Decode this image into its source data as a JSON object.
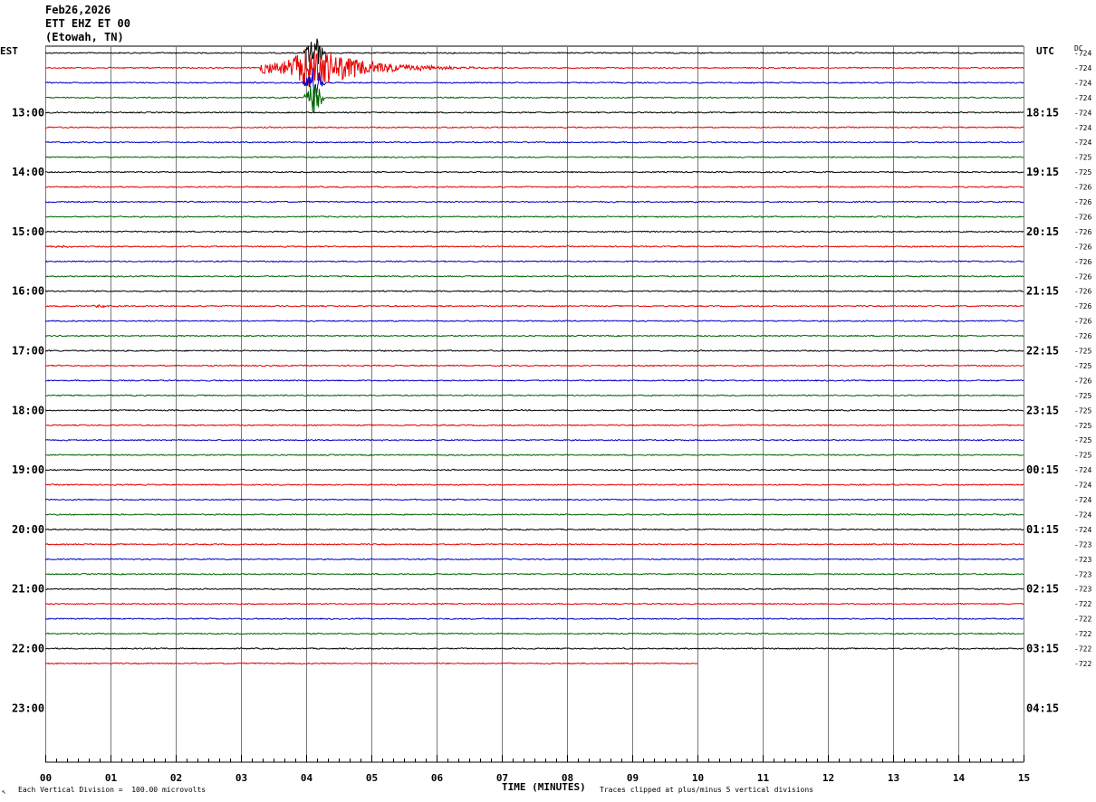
{
  "header": {
    "date": "Feb26,2026",
    "station": "ETT EHZ ET 00",
    "location": "(Etowah, TN)"
  },
  "left_timezone": "EST",
  "right_timezone": "UTC",
  "dc_label": "DC",
  "footer": {
    "scale_note": "Each Vertical Division =  100.00 microvolts",
    "clip_note": "Traces clipped at plus/minus 5 vertical divisions",
    "corner_mark": "↖"
  },
  "trace_colors": [
    "#000000",
    "#e60000",
    "#0000c8",
    "#006400"
  ],
  "chart_data": {
    "type": "line",
    "xlabel": "TIME (MINUTES)",
    "xlim": [
      0,
      15
    ],
    "x_ticks": [
      "00",
      "01",
      "02",
      "03",
      "04",
      "05",
      "06",
      "07",
      "08",
      "09",
      "10",
      "11",
      "12",
      "13",
      "14",
      "15"
    ],
    "left_hour_labels": [
      "13:00",
      "14:00",
      "15:00",
      "16:00",
      "17:00",
      "18:00",
      "19:00",
      "20:00",
      "21:00",
      "22:00",
      "23:00"
    ],
    "right_hour_labels": [
      "18:15",
      "19:15",
      "20:15",
      "21:15",
      "22:15",
      "23:15",
      "00:15",
      "01:15",
      "02:15",
      "03:15",
      "04:15"
    ],
    "rows_per_hour": 4,
    "total_row_slots": 45,
    "trace_count": 42,
    "last_trace_end_minute": 10,
    "dc_offsets": [
      "-724",
      "-724",
      "-724",
      "-724",
      "-724",
      "-724",
      "-724",
      "-725",
      "-725",
      "-726",
      "-726",
      "-726",
      "-726",
      "-726",
      "-726",
      "-726",
      "-726",
      "-726",
      "-726",
      "-726",
      "-725",
      "-725",
      "-726",
      "-725",
      "-725",
      "-725",
      "-725",
      "-725",
      "-724",
      "-724",
      "-724",
      "-724",
      "-724",
      "-723",
      "-723",
      "-723",
      "-723",
      "-722",
      "-722",
      "-722",
      "-722",
      "-722"
    ],
    "events": [
      {
        "trace": 1,
        "start_min": 3.3,
        "peak_min": 4.05,
        "end_min": 7.0,
        "amplitude_div": 5,
        "clipped": true
      },
      {
        "trace": 0,
        "start_min": 3.95,
        "end_min": 4.3,
        "amplitude_div": 5,
        "clipped": true
      },
      {
        "trace": 2,
        "start_min": 3.95,
        "end_min": 4.3,
        "amplitude_div": 4.5
      },
      {
        "trace": 3,
        "start_min": 3.95,
        "end_min": 4.3,
        "amplitude_div": 4.5
      },
      {
        "trace": 13,
        "start_min": 0.0,
        "end_min": 0.5,
        "amplitude_div": 0.3
      },
      {
        "trace": 17,
        "start_min": 0.7,
        "end_min": 1.0,
        "amplitude_div": 0.35
      }
    ]
  }
}
